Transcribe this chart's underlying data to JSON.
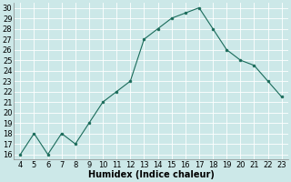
{
  "x": [
    4,
    5,
    6,
    7,
    8,
    9,
    10,
    11,
    12,
    13,
    14,
    15,
    16,
    17,
    18,
    19,
    20,
    21,
    22,
    23
  ],
  "y": [
    16,
    18,
    16,
    18,
    17,
    19,
    21,
    22,
    23,
    27,
    28,
    29,
    29.5,
    30,
    28,
    26,
    25,
    24.5,
    23,
    21.5
  ],
  "xlabel": "Humidex (Indice chaleur)",
  "ylim": [
    15.5,
    30.5
  ],
  "xlim": [
    3.5,
    23.5
  ],
  "yticks": [
    16,
    17,
    18,
    19,
    20,
    21,
    22,
    23,
    24,
    25,
    26,
    27,
    28,
    29,
    30
  ],
  "xticks": [
    4,
    5,
    6,
    7,
    8,
    9,
    10,
    11,
    12,
    13,
    14,
    15,
    16,
    17,
    18,
    19,
    20,
    21,
    22,
    23
  ],
  "line_color": "#1a6b5a",
  "marker_color": "#1a6b5a",
  "bg_color": "#cce8e8",
  "grid_color": "#b8d8d8",
  "xlabel_fontsize": 7,
  "tick_fontsize": 6
}
